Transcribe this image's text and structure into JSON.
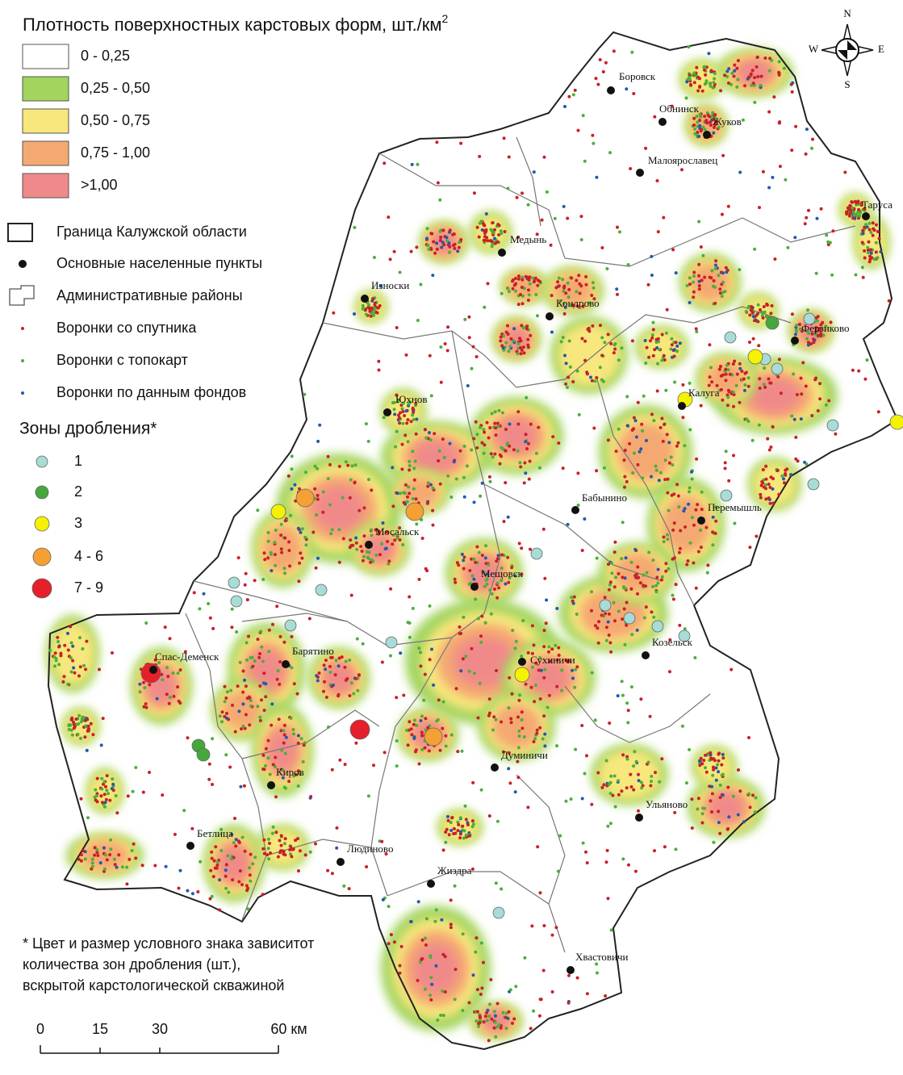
{
  "legend": {
    "title": "Плотность поверхностных карстовых форм, шт./км",
    "title_superscript": "2",
    "density": [
      {
        "label": "0 - 0,25",
        "color": "#ffffff"
      },
      {
        "label": "0,25 - 0,50",
        "color": "#a3d45e"
      },
      {
        "label": "0,50 - 0,75",
        "color": "#f7e77c"
      },
      {
        "label": "0,75 - 1,00",
        "color": "#f5a972"
      },
      {
        "label": ">1,00",
        "color": "#f08a8a"
      }
    ],
    "symbols": {
      "boundary": "Граница Калужской области",
      "settlements": "Основные населенные пункты",
      "districts": "Административные районы",
      "sat": "Воронки со спутника",
      "topo": "Воронки с топокарт",
      "funds": "Воронки по данным фондов"
    },
    "zones_title": "Зоны дробления*",
    "zones": [
      {
        "label": "1",
        "color": "#a8dcd6"
      },
      {
        "label": "2",
        "color": "#44a83c"
      },
      {
        "label": "3",
        "color": "#f5f200"
      },
      {
        "label": "4 - 6",
        "color": "#f5a033"
      },
      {
        "label": "7 - 9",
        "color": "#e5202a"
      }
    ]
  },
  "compass": {
    "n": "N",
    "w": "W",
    "e": "E",
    "s": "S"
  },
  "cities": [
    "Боровск",
    "Обнинск",
    "Жуков",
    "Малоярославец",
    "Таруса",
    "Медынь",
    "Износки",
    "Кондрово",
    "Ферзиково",
    "Калуга",
    "Юхнов",
    "Бабынино",
    "Перемышль",
    "Мосальск",
    "Мещовск",
    "Барятино",
    "Спас-Деменск",
    "Сухиничи",
    "Козельск",
    "Думиничи",
    "Киров",
    "Ульяново",
    "Бетлица",
    "Людиново",
    "Жиздра",
    "Хвастовичи"
  ],
  "footnote": [
    "* Цвет и размер условного знака зависитот",
    "количества зон дробления (шт.),",
    "вскрытой карстологической скважиной"
  ],
  "scale": [
    "0",
    "15",
    "30",
    "60 км"
  ]
}
